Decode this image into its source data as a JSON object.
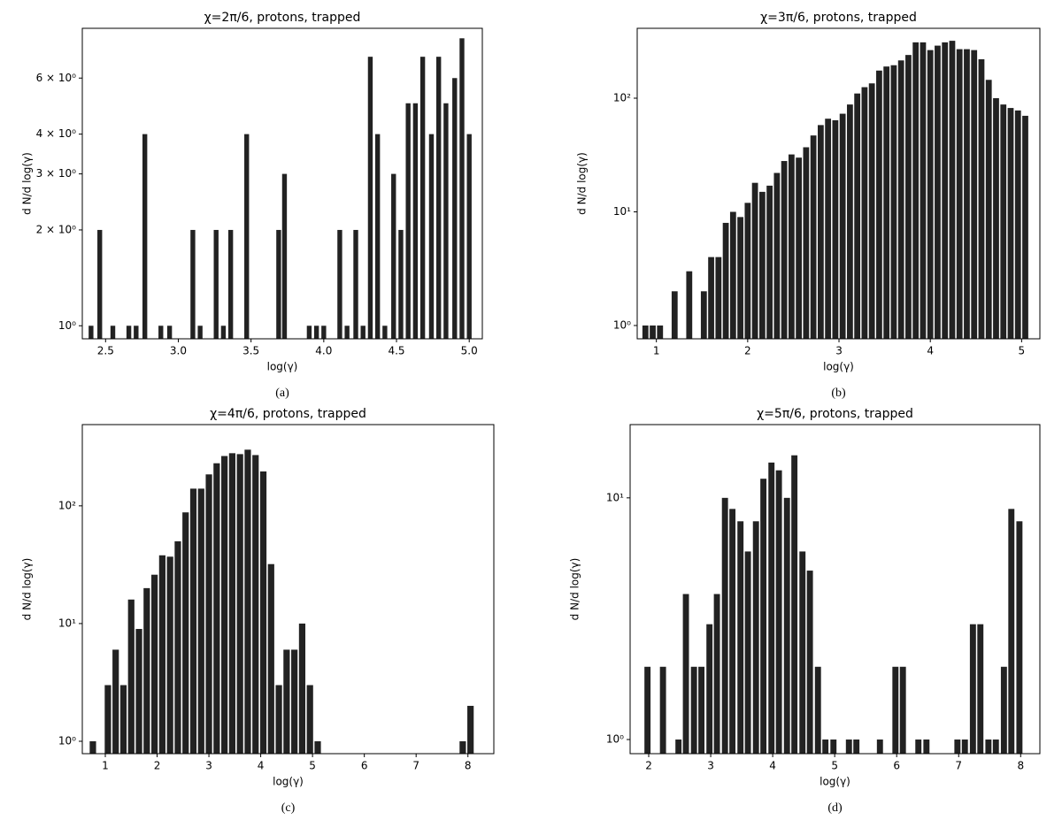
{
  "chart_data": [
    {
      "type": "bar",
      "title": "χ=2π/6, protons, trapped",
      "xlabel": "log(γ)",
      "ylabel": "d N/d log(γ)",
      "caption": "(a)",
      "color": "#222222",
      "ylog": true,
      "x": [
        2.4,
        2.46,
        2.55,
        2.66,
        2.71,
        2.77,
        2.88,
        2.94,
        3.1,
        3.15,
        3.26,
        3.31,
        3.36,
        3.47,
        3.69,
        3.73,
        3.9,
        3.95,
        4.0,
        4.11,
        4.16,
        4.22,
        4.27,
        4.32,
        4.37,
        4.42,
        4.48,
        4.53,
        4.58,
        4.63,
        4.68,
        4.74,
        4.79,
        4.84,
        4.9,
        4.95,
        5.0
      ],
      "values": [
        1,
        2,
        1,
        1,
        1,
        4,
        1,
        1,
        2,
        1,
        2,
        1,
        2,
        4,
        2,
        3,
        1,
        1,
        1,
        2,
        1,
        2,
        1,
        7,
        4,
        1,
        3,
        2,
        5,
        5,
        7,
        4,
        7,
        5,
        6,
        8,
        4
      ],
      "xlim": [
        2.34,
        5.09
      ],
      "xticks": [
        2.5,
        {
          "value": 3,
          "label": "3.0"
        },
        3.5,
        {
          "value": 4,
          "label": "4.0"
        },
        4.5,
        {
          "value": 5,
          "label": "5.0"
        }
      ],
      "ylim": [
        0.91,
        8.6
      ],
      "yticks": [
        {
          "value": 1,
          "label": "10⁰"
        },
        {
          "value": 2,
          "label": "2 × 10⁰"
        },
        {
          "value": 3,
          "label": "3 × 10⁰"
        },
        {
          "value": 4,
          "label": "4 × 10⁰"
        },
        {
          "value": 6,
          "label": "6 × 10⁰"
        }
      ]
    },
    {
      "type": "bar",
      "title": "χ=3π/6, protons, trapped",
      "xlabel": "log(γ)",
      "ylabel": "d N/d log(γ)",
      "caption": "(b)",
      "color": "#222222",
      "ylog": true,
      "x": [
        0.88,
        0.96,
        1.04,
        1.2,
        1.36,
        1.52,
        1.6,
        1.68,
        1.76,
        1.84,
        1.92,
        2.0,
        2.08,
        2.16,
        2.24,
        2.32,
        2.4,
        2.48,
        2.56,
        2.64,
        2.72,
        2.8,
        2.88,
        2.96,
        3.04,
        3.12,
        3.2,
        3.28,
        3.36,
        3.44,
        3.52,
        3.6,
        3.68,
        3.76,
        3.84,
        3.92,
        4.0,
        4.08,
        4.16,
        4.24,
        4.32,
        4.4,
        4.48,
        4.56,
        4.64,
        4.72,
        4.8,
        4.88,
        4.96,
        5.04
      ],
      "values": [
        1,
        1,
        1,
        2,
        3,
        2,
        4,
        4,
        8,
        10,
        9,
        12,
        18,
        15,
        17,
        22,
        28,
        32,
        30,
        37,
        47,
        58,
        66,
        64,
        73,
        88,
        110,
        125,
        135,
        175,
        190,
        195,
        215,
        240,
        310,
        310,
        265,
        290,
        310,
        320,
        270,
        270,
        265,
        220,
        145,
        100,
        88,
        82,
        78,
        70
      ],
      "xlim": [
        0.79,
        5.2
      ],
      "xticks": [
        1,
        2,
        3,
        4,
        5
      ],
      "ylim": [
        0.764,
        412
      ],
      "yticks": [
        {
          "value": 1,
          "label": "10⁰"
        },
        {
          "value": 10,
          "label": "10¹"
        },
        {
          "value": 100,
          "label": "10²"
        }
      ]
    },
    {
      "type": "bar",
      "title": "χ=4π/6, protons, trapped",
      "xlabel": "log(γ)",
      "ylabel": "d N/d log(γ)",
      "caption": "(c)",
      "color": "#222222",
      "ylog": true,
      "x": [
        0.76,
        1.05,
        1.2,
        1.35,
        1.5,
        1.65,
        1.8,
        1.95,
        2.1,
        2.25,
        2.4,
        2.55,
        2.7,
        2.85,
        3.0,
        3.15,
        3.3,
        3.45,
        3.6,
        3.75,
        3.9,
        4.05,
        4.2,
        4.35,
        4.5,
        4.65,
        4.8,
        4.95,
        5.1,
        7.9,
        8.05
      ],
      "values": [
        1,
        3,
        6,
        3,
        16,
        9,
        20,
        26,
        38,
        37,
        50,
        88,
        140,
        140,
        185,
        230,
        265,
        280,
        275,
        300,
        270,
        196,
        32,
        3,
        6,
        6,
        10,
        3,
        1,
        1,
        2
      ],
      "xlim": [
        0.556,
        8.5
      ],
      "xticks": [
        1,
        2,
        3,
        4,
        5,
        6,
        7,
        8
      ],
      "ylim": [
        0.785,
        490
      ],
      "yticks": [
        {
          "value": 1,
          "label": "10⁰"
        },
        {
          "value": 10,
          "label": "10¹"
        },
        {
          "value": 100,
          "label": "10²"
        }
      ]
    },
    {
      "type": "bar",
      "title": "χ=5π/6, protons, trapped",
      "xlabel": "log(γ)",
      "ylabel": "d N/d log(γ)",
      "caption": "(d)",
      "color": "#222222",
      "ylog": true,
      "x": [
        1.98,
        2.23,
        2.48,
        2.6,
        2.73,
        2.85,
        2.98,
        3.1,
        3.23,
        3.35,
        3.48,
        3.6,
        3.73,
        3.85,
        3.98,
        4.1,
        4.23,
        4.35,
        4.48,
        4.6,
        4.73,
        4.85,
        4.98,
        5.23,
        5.35,
        5.73,
        5.98,
        6.1,
        6.35,
        6.48,
        6.98,
        7.1,
        7.23,
        7.35,
        7.48,
        7.6,
        7.73,
        7.85,
        7.98
      ],
      "values": [
        2,
        2,
        1,
        4,
        2,
        2,
        3,
        4,
        10,
        9,
        8,
        6,
        8,
        12,
        14,
        13,
        10,
        15,
        6,
        5,
        2,
        1,
        1,
        1,
        1,
        1,
        2,
        2,
        1,
        1,
        1,
        1,
        3,
        3,
        1,
        1,
        2,
        9,
        8
      ],
      "xlim": [
        1.7,
        8.31
      ],
      "xticks": [
        2,
        3,
        4,
        5,
        6,
        7,
        8
      ],
      "ylim": [
        0.874,
        20.1
      ],
      "yticks": [
        {
          "value": 1,
          "label": "10⁰"
        },
        {
          "value": 10,
          "label": "10¹"
        }
      ]
    }
  ]
}
